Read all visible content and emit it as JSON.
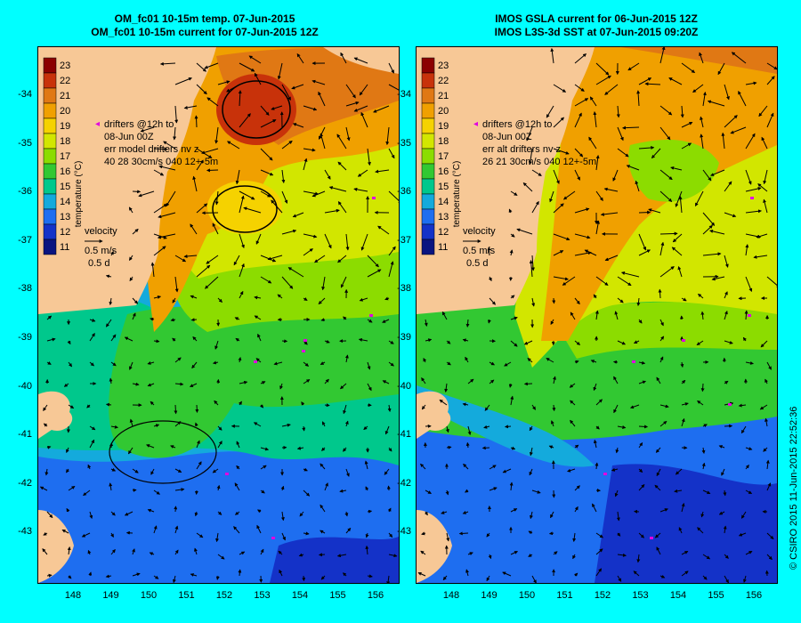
{
  "left_panel": {
    "title_line1": "OM_fc01 10-15m temp. 07-Jun-2015",
    "title_line2": "OM_fc01 10-15m current for 07-Jun-2015 12Z",
    "drifters_lines": [
      "drifters @12h to",
      "08-Jun 00Z",
      "err model drifters nv z",
      "40    28      30cm/s 040 12+-5m"
    ]
  },
  "right_panel": {
    "title_line1": "IMOS GSLA current for 06-Jun-2015 12Z",
    "title_line2": "IMOS L3S-3d SST at 07-Jun-2015 09:20Z",
    "drifters_lines": [
      "drifters @12h to",
      "08-Jun 00Z",
      "err alt drifters nv z",
      "26 21 30cm/s 040 12+-5m"
    ]
  },
  "colorbar": {
    "label": "temperature (°C)",
    "ticks": [
      "23",
      "22",
      "21",
      "20",
      "19",
      "18",
      "17",
      "16",
      "15",
      "14",
      "13",
      "12",
      "11"
    ],
    "colors": [
      "#8b0000",
      "#c8320a",
      "#e07814",
      "#f0a000",
      "#f5d200",
      "#d2e600",
      "#8cdc00",
      "#32c832",
      "#00c88c",
      "#14aadc",
      "#1e6ef0",
      "#1432c8",
      "#0a1480"
    ]
  },
  "velocity_key": {
    "title": "velocity",
    "line1": "0.5 m/s",
    "line2": "0.5 d"
  },
  "axes": {
    "lat_labels": [
      "-34",
      "-35",
      "-36",
      "-37",
      "-38",
      "-39",
      "-40",
      "-41",
      "-42",
      "-43"
    ],
    "lon_labels": [
      "148",
      "149",
      "150",
      "151",
      "152",
      "153",
      "154",
      "155",
      "156"
    ]
  },
  "credit": "© CSIRO 2015   11-Jun-2015 22:52:36",
  "colors": {
    "background": "#00ffff",
    "land": "#f7c896",
    "arrow": "#000000",
    "drifter": "#e000e0"
  }
}
